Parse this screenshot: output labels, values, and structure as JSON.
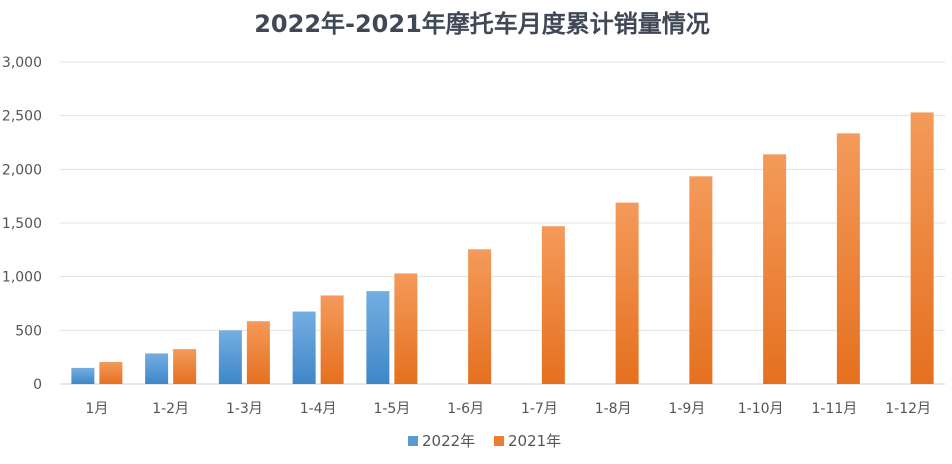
{
  "chart_data": {
    "type": "bar",
    "title": "2022年-2021年摩托车月度累计销量情况",
    "xlabel": "",
    "ylabel": "",
    "categories": [
      "1月",
      "1-2月",
      "1-3月",
      "1-4月",
      "1-5月",
      "1-6月",
      "1-7月",
      "1-8月",
      "1-9月",
      "1-10月",
      "1-11月",
      "1-12月"
    ],
    "ylim": [
      0,
      3000
    ],
    "yticks": [
      "0",
      "500",
      "1,000",
      "1,500",
      "2,000",
      "2,500",
      "3,000"
    ],
    "grid": true,
    "legend_position": "bottom-center",
    "series": [
      {
        "name": "2022年",
        "color": "#5b9bd5",
        "values": [
          150,
          285,
          500,
          675,
          865,
          null,
          null,
          null,
          null,
          null,
          null,
          null
        ]
      },
      {
        "name": "2021年",
        "color": "#ed7d31",
        "values": [
          205,
          325,
          585,
          825,
          1030,
          1255,
          1470,
          1690,
          1935,
          2140,
          2335,
          2530
        ]
      }
    ]
  }
}
